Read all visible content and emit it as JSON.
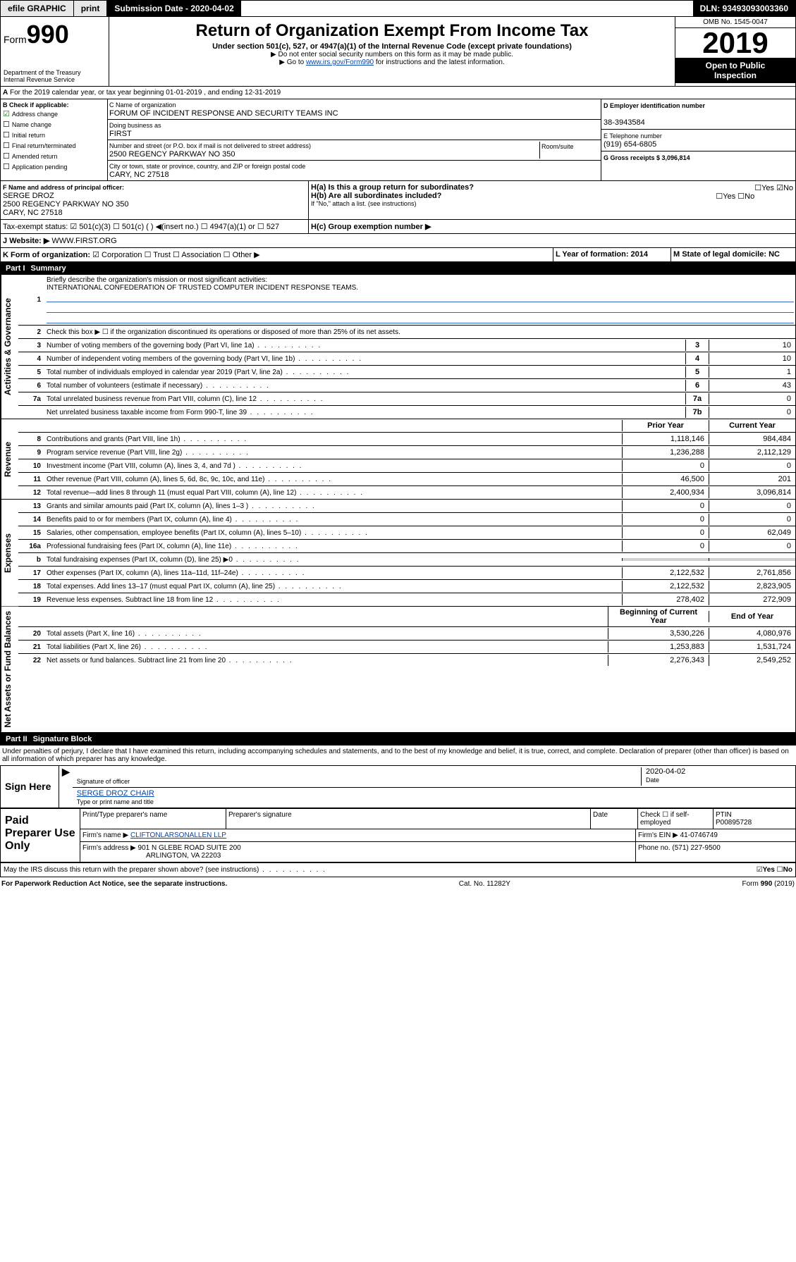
{
  "topbar": {
    "efile": "efile GRAPHIC",
    "print": "print",
    "subdate_label": "Submission Date - 2020-04-02",
    "dln": "DLN: 93493093003360"
  },
  "header": {
    "form": "Form",
    "num": "990",
    "dept": "Department of the Treasury",
    "irs": "Internal Revenue Service",
    "title": "Return of Organization Exempt From Income Tax",
    "sub": "Under section 501(c), 527, or 4947(a)(1) of the Internal Revenue Code (except private foundations)",
    "note1": "▶ Do not enter social security numbers on this form as it may be made public.",
    "note2a": "▶ Go to ",
    "note2link": "www.irs.gov/Form990",
    "note2b": " for instructions and the latest information.",
    "omb": "OMB No. 1545-0047",
    "year": "2019",
    "open": "Open to Public",
    "insp": "Inspection"
  },
  "lineA": "For the 2019 calendar year, or tax year beginning 01-01-2019   , and ending 12-31-2019",
  "boxB": {
    "title": "B Check if applicable:",
    "items": [
      "Address change",
      "Name change",
      "Initial return",
      "Final return/terminated",
      "Amended return",
      "Application pending"
    ],
    "checked": 0
  },
  "org": {
    "name_label": "C Name of organization",
    "name": "FORUM OF INCIDENT RESPONSE AND SECURITY TEAMS INC",
    "dba_label": "Doing business as",
    "dba": "FIRST",
    "addr_label": "Number and street (or P.O. box if mail is not delivered to street address)",
    "room": "Room/suite",
    "addr": "2500 REGENCY PARKWAY NO 350",
    "city_label": "City or town, state or province, country, and ZIP or foreign postal code",
    "city": "CARY, NC  27518"
  },
  "boxD": {
    "label": "D Employer identification number",
    "val": "38-3943584"
  },
  "boxE": {
    "label": "E Telephone number",
    "val": "(919) 654-6805"
  },
  "boxG": {
    "label": "G Gross receipts $ 3,096,814"
  },
  "boxF": {
    "label": "F  Name and address of principal officer:",
    "name": "SERGE DROZ",
    "addr": "2500 REGENCY PARKWAY NO 350",
    "city": "CARY, NC  27518"
  },
  "boxH": {
    "a": "H(a)  Is this a group return for subordinates?",
    "b": "H(b)  Are all subordinates included?",
    "note": "If \"No,\" attach a list. (see instructions)",
    "c": "H(c)  Group exemption number ▶",
    "yes": "Yes",
    "no": "No"
  },
  "taxexempt": {
    "label": "Tax-exempt status:",
    "c3": "501(c)(3)",
    "c": "501(c) (  ) ◀(insert no.)",
    "a1": "4947(a)(1) or",
    "s527": "527"
  },
  "boxJ": {
    "label": "Website: ▶",
    "val": "WWW.FIRST.ORG"
  },
  "boxK": {
    "label": "K Form of organization:",
    "corp": "Corporation",
    "trust": "Trust",
    "assoc": "Association",
    "other": "Other ▶"
  },
  "boxL": {
    "label": "L Year of formation: 2014"
  },
  "boxM": {
    "label": "M State of legal domicile: NC"
  },
  "part1": {
    "label": "Part I",
    "title": "Summary"
  },
  "summary": {
    "l1": "Briefly describe the organization's mission or most significant activities:",
    "l1val": "INTERNATIONAL CONFEDERATION OF TRUSTED COMPUTER INCIDENT RESPONSE TEAMS.",
    "l2": "Check this box ▶ ☐  if the organization discontinued its operations or disposed of more than 25% of its net assets.",
    "l3": "Number of voting members of the governing body (Part VI, line 1a)",
    "l3v": "10",
    "l4": "Number of independent voting members of the governing body (Part VI, line 1b)",
    "l4v": "10",
    "l5": "Total number of individuals employed in calendar year 2019 (Part V, line 2a)",
    "l5v": "1",
    "l6": "Total number of volunteers (estimate if necessary)",
    "l6v": "43",
    "l7a": "Total unrelated business revenue from Part VIII, column (C), line 12",
    "l7av": "0",
    "l7b": "Net unrelated business taxable income from Form 990-T, line 39",
    "l7bv": "0"
  },
  "cols": {
    "prior": "Prior Year",
    "current": "Current Year",
    "begin": "Beginning of Current Year",
    "end": "End of Year"
  },
  "revenue": [
    {
      "n": "8",
      "t": "Contributions and grants (Part VIII, line 1h)",
      "p": "1,118,146",
      "c": "984,484"
    },
    {
      "n": "9",
      "t": "Program service revenue (Part VIII, line 2g)",
      "p": "1,236,288",
      "c": "2,112,129"
    },
    {
      "n": "10",
      "t": "Investment income (Part VIII, column (A), lines 3, 4, and 7d )",
      "p": "0",
      "c": "0"
    },
    {
      "n": "11",
      "t": "Other revenue (Part VIII, column (A), lines 5, 6d, 8c, 9c, 10c, and 11e)",
      "p": "46,500",
      "c": "201"
    },
    {
      "n": "12",
      "t": "Total revenue—add lines 8 through 11 (must equal Part VIII, column (A), line 12)",
      "p": "2,400,934",
      "c": "3,096,814"
    }
  ],
  "expenses": [
    {
      "n": "13",
      "t": "Grants and similar amounts paid (Part IX, column (A), lines 1–3 )",
      "p": "0",
      "c": "0"
    },
    {
      "n": "14",
      "t": "Benefits paid to or for members (Part IX, column (A), line 4)",
      "p": "0",
      "c": "0"
    },
    {
      "n": "15",
      "t": "Salaries, other compensation, employee benefits (Part IX, column (A), lines 5–10)",
      "p": "0",
      "c": "62,049"
    },
    {
      "n": "16a",
      "t": "Professional fundraising fees (Part IX, column (A), line 11e)",
      "p": "0",
      "c": "0"
    },
    {
      "n": "b",
      "t": "Total fundraising expenses (Part IX, column (D), line 25) ▶0",
      "p": "",
      "c": "",
      "gray": true
    },
    {
      "n": "17",
      "t": "Other expenses (Part IX, column (A), lines 11a–11d, 11f–24e)",
      "p": "2,122,532",
      "c": "2,761,856"
    },
    {
      "n": "18",
      "t": "Total expenses. Add lines 13–17 (must equal Part IX, column (A), line 25)",
      "p": "2,122,532",
      "c": "2,823,905"
    },
    {
      "n": "19",
      "t": "Revenue less expenses. Subtract line 18 from line 12",
      "p": "278,402",
      "c": "272,909"
    }
  ],
  "netassets": [
    {
      "n": "20",
      "t": "Total assets (Part X, line 16)",
      "p": "3,530,226",
      "c": "4,080,976"
    },
    {
      "n": "21",
      "t": "Total liabilities (Part X, line 26)",
      "p": "1,253,883",
      "c": "1,531,724"
    },
    {
      "n": "22",
      "t": "Net assets or fund balances. Subtract line 21 from line 20",
      "p": "2,276,343",
      "c": "2,549,252"
    }
  ],
  "part2": {
    "label": "Part II",
    "title": "Signature Block"
  },
  "perjury": "Under penalties of perjury, I declare that I have examined this return, including accompanying schedules and statements, and to the best of my knowledge and belief, it is true, correct, and complete. Declaration of preparer (other than officer) is based on all information of which preparer has any knowledge.",
  "sign": {
    "here": "Sign Here",
    "sigoff": "Signature of officer",
    "date": "Date",
    "dateval": "2020-04-02",
    "name": "SERGE DROZ CHAIR",
    "nametitle": "Type or print name and title"
  },
  "paid": {
    "here": "Paid Preparer Use Only",
    "pname": "Print/Type preparer's name",
    "psig": "Preparer's signature",
    "pdate": "Date",
    "check": "Check ☐ if self-employed",
    "ptin": "PTIN",
    "ptinval": "P00895728",
    "fname": "Firm's name   ▶",
    "fnameval": "CLIFTONLARSONALLEN LLP",
    "fein": "Firm's EIN ▶",
    "feinval": "41-0746749",
    "faddr": "Firm's address ▶",
    "faddrval": "901 N GLEBE ROAD SUITE 200",
    "fcity": "ARLINGTON, VA  22203",
    "phone": "Phone no. (571) 227-9500"
  },
  "irs_discuss": "May the IRS discuss this return with the preparer shown above? (see instructions)",
  "footer": {
    "pra": "For Paperwork Reduction Act Notice, see the separate instructions.",
    "cat": "Cat. No. 11282Y",
    "form": "Form 990 (2019)"
  },
  "sidelabels": {
    "gov": "Activities & Governance",
    "rev": "Revenue",
    "exp": "Expenses",
    "net": "Net Assets or Fund Balances"
  }
}
